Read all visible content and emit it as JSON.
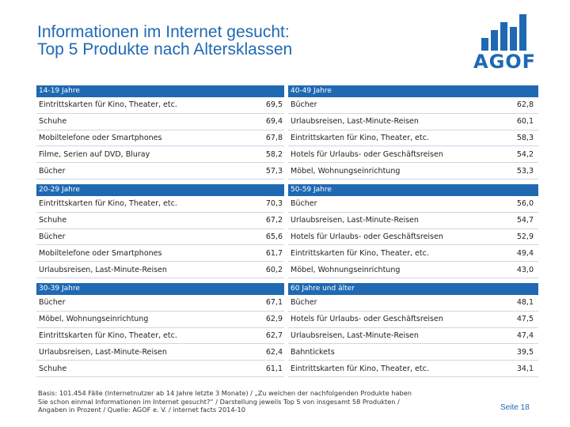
{
  "title": {
    "line1": "Informationen im Internet gesucht:",
    "line2": "Top 5 Produkte nach Altersklassen"
  },
  "logo": {
    "text": "AGOF"
  },
  "colors": {
    "accent": "#1f69b3"
  },
  "groups_left": [
    {
      "header": "14-19 Jahre",
      "rows": [
        {
          "label": "Eintrittskarten für Kino, Theater, etc.",
          "value": "69,5"
        },
        {
          "label": "Schuhe",
          "value": "69,4"
        },
        {
          "label": "Mobiltelefone oder Smartphones",
          "value": "67,8"
        },
        {
          "label": "Filme, Serien auf DVD, Bluray",
          "value": "58,2"
        },
        {
          "label": "Bücher",
          "value": "57,3"
        }
      ]
    },
    {
      "header": "20-29 Jahre",
      "rows": [
        {
          "label": "Eintrittskarten für Kino, Theater, etc.",
          "value": "70,3"
        },
        {
          "label": "Schuhe",
          "value": "67,2"
        },
        {
          "label": "Bücher",
          "value": "65,6"
        },
        {
          "label": "Mobiltelefone oder Smartphones",
          "value": "61,7"
        },
        {
          "label": "Urlaubsreisen, Last-Minute-Reisen",
          "value": "60,2"
        }
      ]
    },
    {
      "header": "30-39 Jahre",
      "rows": [
        {
          "label": "Bücher",
          "value": "67,1"
        },
        {
          "label": "Möbel, Wohnungseinrichtung",
          "value": "62,9"
        },
        {
          "label": "Eintrittskarten für Kino, Theater, etc.",
          "value": "62,7"
        },
        {
          "label": "Urlaubsreisen, Last-Minute-Reisen",
          "value": "62,4"
        },
        {
          "label": "Schuhe",
          "value": "61,1"
        }
      ]
    }
  ],
  "groups_right": [
    {
      "header": "40-49 Jahre",
      "rows": [
        {
          "label": "Bücher",
          "value": "62,8"
        },
        {
          "label": "Urlaubsreisen, Last-Minute-Reisen",
          "value": "60,1"
        },
        {
          "label": "Eintrittskarten für Kino, Theater, etc.",
          "value": "58,3"
        },
        {
          "label": "Hotels für Urlaubs- oder Geschäftsreisen",
          "value": "54,2"
        },
        {
          "label": "Möbel, Wohnungseinrichtung",
          "value": "53,3"
        }
      ]
    },
    {
      "header": "50-59 Jahre",
      "rows": [
        {
          "label": "Bücher",
          "value": "56,0"
        },
        {
          "label": "Urlaubsreisen, Last-Minute-Reisen",
          "value": "54,7"
        },
        {
          "label": "Hotels für Urlaubs- oder Geschäftsreisen",
          "value": "52,9"
        },
        {
          "label": "Eintrittskarten für Kino, Theater, etc.",
          "value": "49,4"
        },
        {
          "label": "Möbel, Wohnungseinrichtung",
          "value": "43,0"
        }
      ]
    },
    {
      "header": "60 Jahre und älter",
      "rows": [
        {
          "label": "Bücher",
          "value": "48,1"
        },
        {
          "label": "Hotels für Urlaubs- oder Geschäftsreisen",
          "value": "47,5"
        },
        {
          "label": "Urlaubsreisen, Last-Minute-Reisen",
          "value": "47,4"
        },
        {
          "label": "Bahntickets",
          "value": "39,5"
        },
        {
          "label": "Eintrittskarten für Kino, Theater, etc.",
          "value": "34,1"
        }
      ]
    }
  ],
  "footer": {
    "line1": "Basis: 101.454 Fälle (Internetnutzer ab 14 Jahre letzte 3 Monate) / „Zu welchen der nachfolgenden Produkte haben",
    "line2": "Sie schon einmal Informationen im Internet gesucht?“ / Darstellung jeweils Top 5 von insgesamt 58 Produkten /",
    "line3": "Angaben in Prozent / Quelle: AGOF e. V. / internet facts 2014-10"
  },
  "page_label": "Seite 18"
}
